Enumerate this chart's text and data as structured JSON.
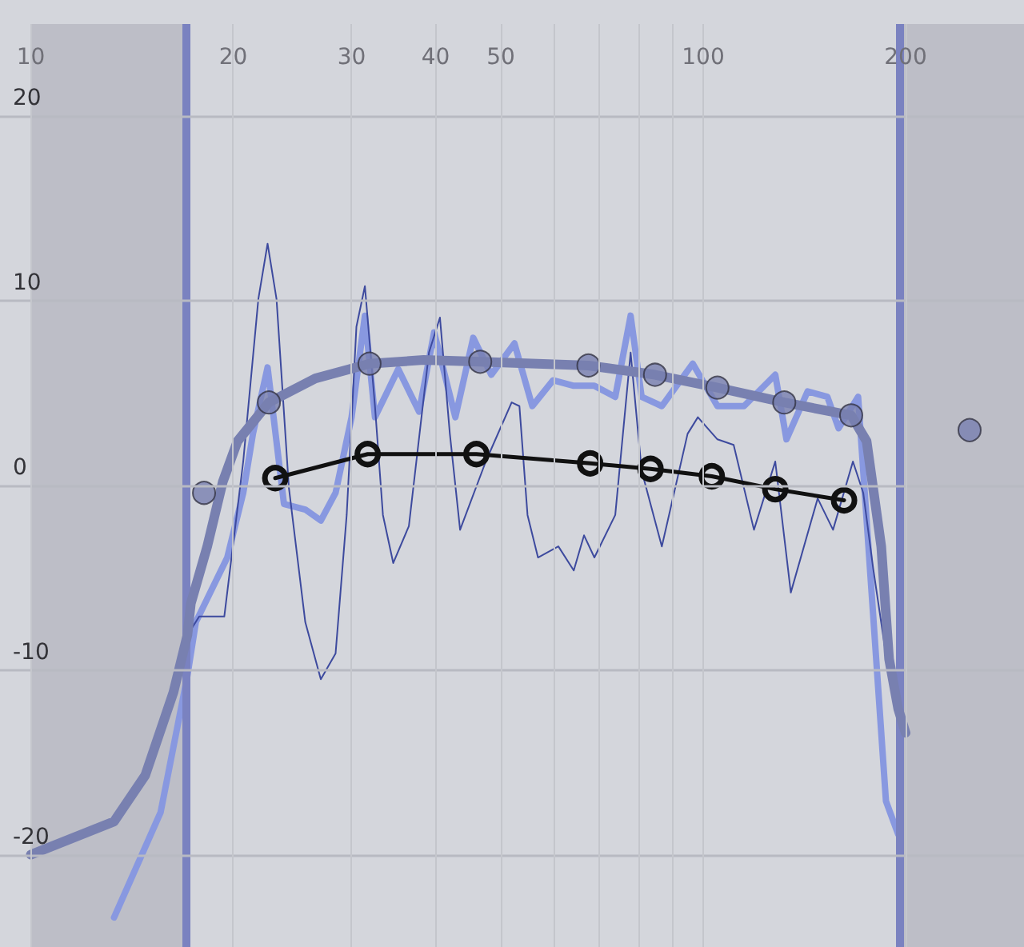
{
  "chart_data": {
    "type": "line",
    "log": "x",
    "grid": true,
    "xlim": [
      9,
      300
    ],
    "ylim": [
      -25,
      25
    ],
    "xticks": [
      10,
      20,
      30,
      40,
      50,
      {
        "value": 60,
        "label": null
      },
      {
        "value": 70,
        "label": null
      },
      {
        "value": 80,
        "label": null
      },
      {
        "value": 90,
        "label": null
      },
      100,
      200
    ],
    "yticks": [
      -20,
      -10,
      0,
      10,
      20
    ],
    "bands": [
      {
        "axis": "x",
        "from": 10,
        "to": 17,
        "color": "#bdbec7"
      },
      {
        "axis": "x",
        "from": 196,
        "to": 300,
        "color": "#bdbec7"
      }
    ],
    "ref_lines": [
      {
        "axis": "x",
        "value": 17,
        "color": "#7a82c0"
      },
      {
        "axis": "x",
        "value": 196,
        "color": "#7a82c0"
      }
    ],
    "series": [
      {
        "color": "#8898e0",
        "marker": "none",
        "x": [
          13.3,
          15.6,
          17.1,
          17.6,
          19.6,
          20.7,
          21.4,
          22.5,
          23.8,
          25.6,
          27.0,
          28.4,
          30.0,
          31.4,
          32.5,
          35.2,
          37.8,
          39.8,
          42.8,
          45.5,
          48.4,
          52.4,
          55.7,
          59.8,
          64.2,
          68.9,
          74,
          78,
          81,
          86.8,
          96.5,
          105,
          115,
          128,
          133,
          143,
          153,
          159,
          170,
          187,
          195
        ],
        "values": [
          -23.4,
          -17.7,
          -10.3,
          -7.4,
          -3.9,
          -0.4,
          2.8,
          6.4,
          -1.0,
          -1.3,
          -1.9,
          -0.4,
          3.7,
          9.2,
          3.7,
          6.3,
          4.0,
          8.3,
          3.7,
          8.0,
          6.0,
          7.7,
          4.3,
          5.7,
          5.4,
          5.4,
          4.8,
          9.2,
          4.8,
          4.3,
          6.6,
          4.3,
          4.3,
          6.0,
          2.5,
          5.1,
          4.8,
          3.1,
          4.8,
          -17.1,
          -18.9
        ]
      },
      {
        "color": "#3d4a9e",
        "marker": "none",
        "x": [
          17.1,
          17.8,
          19.4,
          20.7,
          21.8,
          22.5,
          23.2,
          24.2,
          25.6,
          27.0,
          28.4,
          29.5,
          30.5,
          31.4,
          32.5,
          33.4,
          34.6,
          36.5,
          39.1,
          40.6,
          42.0,
          43.5,
          47.5,
          51.9,
          53.3,
          54.8,
          56.8,
          60.9,
          64.2,
          66.5,
          68.9,
          74,
          78,
          81,
          86.8,
          94.8,
          98.2,
          105,
          111,
          119,
          128,
          135,
          148,
          156,
          167,
          173,
          179,
          189,
          196
        ],
        "values": [
          -8.1,
          -7.1,
          -7.1,
          1.3,
          10.1,
          13.1,
          10.1,
          -0.1,
          -7.4,
          -10.5,
          -9.1,
          -1.6,
          8.6,
          10.8,
          4.3,
          -1.6,
          -4.2,
          -2.2,
          7.2,
          9.1,
          2.8,
          -2.4,
          1.3,
          4.5,
          4.3,
          -1.6,
          -3.9,
          -3.3,
          -4.6,
          -2.7,
          -3.9,
          -1.6,
          7.2,
          0.8,
          -3.3,
          2.8,
          3.7,
          2.5,
          2.2,
          -2.4,
          1.3,
          -5.8,
          -0.7,
          -2.4,
          1.3,
          -0.4,
          -4.5,
          -10.3,
          -12.1
        ]
      },
      {
        "color": "#7880b0",
        "marker": "none",
        "x": [
          10,
          13.3,
          14.8,
          16.3,
          17.1,
          17.3,
          18.3,
          19.3,
          20.3,
          22.6,
          26.5,
          31.9,
          38.4,
          46.6,
          67.5,
          84.8,
          105,
          132,
          166,
          175,
          184,
          189,
          195,
          200
        ],
        "values": [
          -20,
          -18.2,
          -15.7,
          -11.2,
          -8.1,
          -6.4,
          -3.3,
          0.2,
          2.4,
          4.5,
          5.8,
          6.6,
          6.8,
          6.7,
          6.5,
          6.0,
          5.3,
          4.5,
          3.8,
          2.4,
          -3.3,
          -9.4,
          -12.1,
          -13.4
        ]
      },
      {
        "type": "scatter",
        "color": "#7880b0",
        "marker": "circle",
        "x": [
          18.1,
          22.6,
          31.9,
          46.6,
          67.5,
          84.8,
          105,
          132,
          166,
          249
        ],
        "values": [
          -0.4,
          4.5,
          6.6,
          6.7,
          6.5,
          6.0,
          5.3,
          4.5,
          3.8,
          3.0
        ]
      },
      {
        "color": "#111111",
        "marker": "circle",
        "x": [
          23.1,
          31.7,
          46.0,
          67.9,
          83.5,
          103,
          128,
          162
        ],
        "values": [
          0.4,
          1.7,
          1.7,
          1.2,
          0.9,
          0.5,
          -0.2,
          -0.8
        ]
      }
    ]
  }
}
